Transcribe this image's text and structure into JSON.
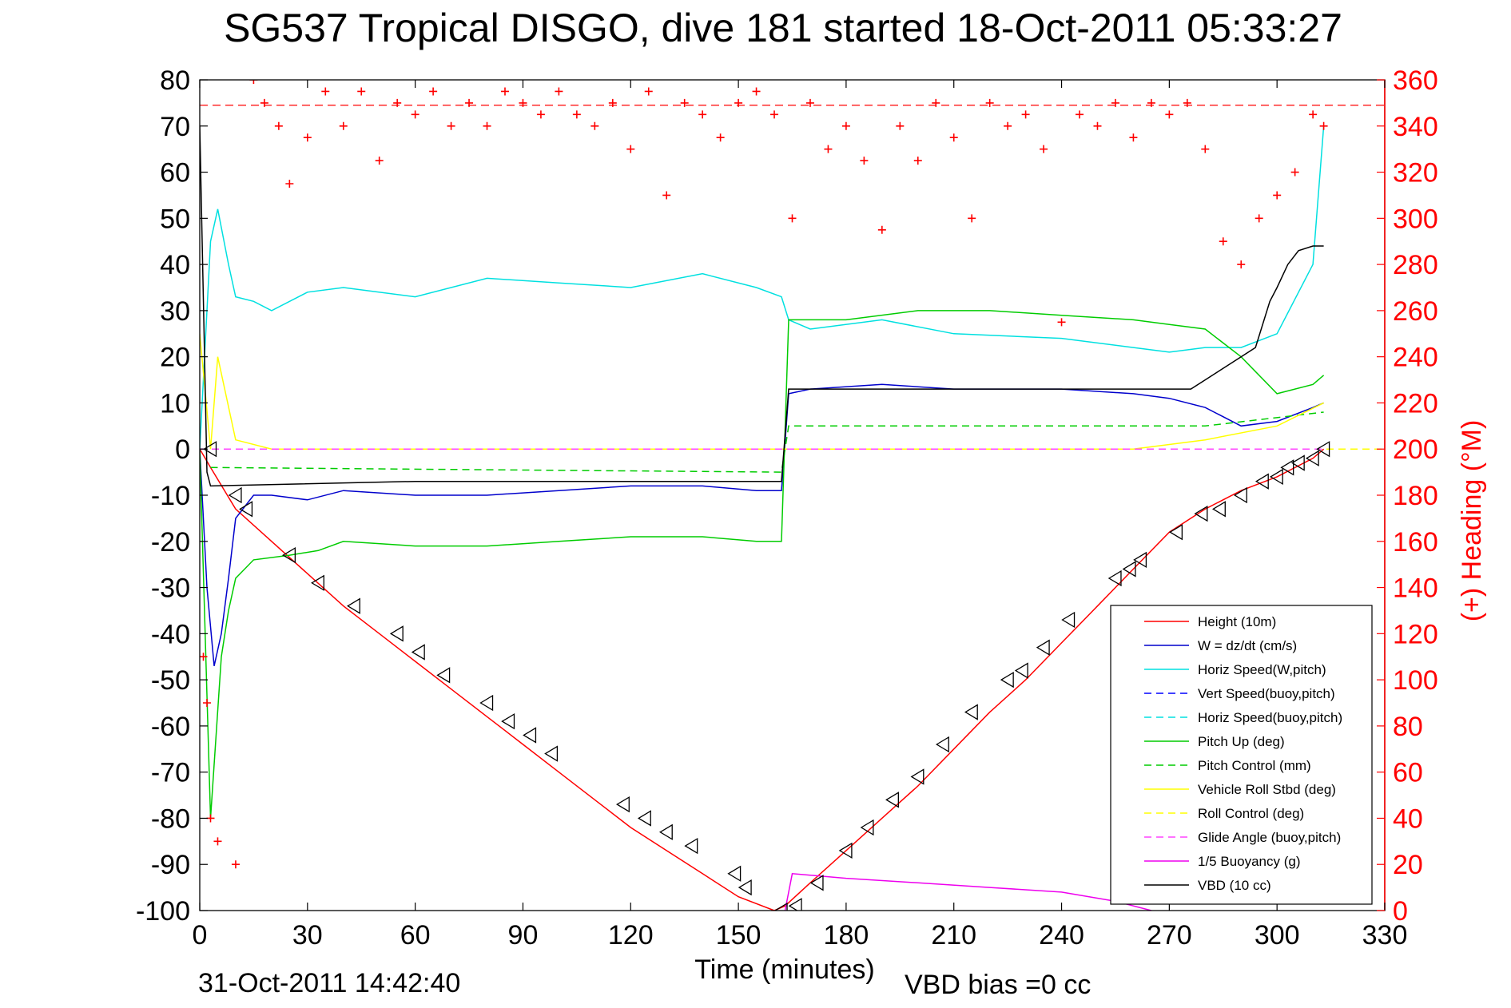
{
  "chart_data": {
    "type": "line",
    "title": "SG537 Tropical DISGO, dive 181 started 18-Oct-2011 05:33:27",
    "xlabel": "Time (minutes)",
    "ylabel_right": "(+) Heading (°M)",
    "xlim": [
      0,
      330
    ],
    "ylim": [
      -100,
      80
    ],
    "ylim_right": [
      0,
      360
    ],
    "x_ticks": [
      "0",
      "30",
      "60",
      "90",
      "120",
      "150",
      "180",
      "210",
      "240",
      "270",
      "300",
      "330"
    ],
    "y_ticks": [
      "80",
      "70",
      "60",
      "50",
      "40",
      "30",
      "20",
      "10",
      "0",
      "-10",
      "-20",
      "-30",
      "-40",
      "-50",
      "-60",
      "-70",
      "-80",
      "-90",
      "-100"
    ],
    "y_right_ticks": [
      "360",
      "340",
      "320",
      "300",
      "280",
      "260",
      "240",
      "220",
      "200",
      "180",
      "160",
      "140",
      "120",
      "100",
      "80",
      "60",
      "40",
      "20",
      "0"
    ],
    "bottom_left_text": "31-Oct-2011 14:42:40",
    "bottom_right_text": "VBD bias =0 cc",
    "legend_position": "bottom-right",
    "grid": false,
    "reference_line_heading": 349,
    "series": [
      {
        "name": "Height (10m)",
        "color": "#ff0000",
        "style": "solid",
        "x": [
          0,
          3,
          10,
          20,
          30,
          40,
          50,
          60,
          70,
          80,
          90,
          100,
          110,
          120,
          130,
          140,
          150,
          160,
          163,
          170,
          180,
          190,
          200,
          210,
          220,
          230,
          240,
          250,
          260,
          270,
          280,
          290,
          300,
          310,
          313
        ],
        "y": [
          0,
          -4,
          -13,
          -20,
          -27,
          -34,
          -40,
          -46,
          -52,
          -58,
          -64,
          -70,
          -76,
          -82,
          -87,
          -92,
          -97,
          -100,
          -99,
          -94,
          -87,
          -80,
          -73,
          -65,
          -57,
          -50,
          -42,
          -34,
          -26,
          -18,
          -13,
          -9,
          -6,
          -2,
          0
        ]
      },
      {
        "name": "W = dz/dt (cm/s)",
        "color": "#0000cc",
        "style": "solid",
        "x": [
          0,
          2,
          4,
          6,
          8,
          10,
          15,
          20,
          30,
          40,
          60,
          80,
          100,
          120,
          140,
          155,
          162,
          164,
          170,
          190,
          210,
          240,
          260,
          270,
          280,
          290,
          300,
          310,
          313
        ],
        "y": [
          0,
          -30,
          -47,
          -40,
          -28,
          -15,
          -10,
          -10,
          -11,
          -9,
          -10,
          -10,
          -9,
          -8,
          -8,
          -9,
          -9,
          12,
          13,
          14,
          13,
          13,
          12,
          11,
          9,
          5,
          6,
          9,
          10
        ]
      },
      {
        "name": "Horiz Speed(W,pitch)",
        "color": "#00e0e0",
        "style": "solid",
        "x": [
          0,
          3,
          5,
          8,
          10,
          15,
          20,
          30,
          40,
          60,
          80,
          100,
          120,
          140,
          155,
          162,
          164,
          170,
          190,
          210,
          240,
          260,
          270,
          280,
          290,
          300,
          310,
          313
        ],
        "y": [
          0,
          45,
          52,
          40,
          33,
          32,
          30,
          34,
          35,
          33,
          37,
          36,
          35,
          38,
          35,
          33,
          28,
          26,
          28,
          25,
          24,
          22,
          21,
          22,
          22,
          25,
          40,
          70
        ]
      },
      {
        "name": "Vert Speed(buoy,pitch)",
        "color": "#0000ff",
        "style": "dashed",
        "x": [
          0,
          330
        ],
        "y": [
          0,
          0
        ]
      },
      {
        "name": "Horiz Speed(buoy,pitch)",
        "color": "#00e0e0",
        "style": "dashed",
        "x": [
          0,
          330
        ],
        "y": [
          0,
          0
        ]
      },
      {
        "name": "Pitch Up (deg)",
        "color": "#00cc00",
        "style": "solid",
        "x": [
          0,
          3,
          6,
          8,
          10,
          15,
          25,
          33,
          40,
          60,
          80,
          100,
          120,
          140,
          155,
          162,
          164,
          180,
          200,
          220,
          240,
          260,
          270,
          280,
          290,
          300,
          310,
          313
        ],
        "y": [
          0,
          -80,
          -45,
          -35,
          -28,
          -24,
          -23,
          -22,
          -20,
          -21,
          -21,
          -20,
          -19,
          -19,
          -20,
          -20,
          28,
          28,
          30,
          30,
          29,
          28,
          27,
          26,
          20,
          12,
          14,
          16
        ]
      },
      {
        "name": "Pitch Control (mm)",
        "color": "#00cc00",
        "style": "dashed",
        "x": [
          3,
          162,
          164,
          200,
          240,
          280,
          313
        ],
        "y": [
          -4,
          -5,
          5,
          5,
          5,
          5,
          8
        ]
      },
      {
        "name": "Vehicle Roll Stbd (deg)",
        "color": "#ffff00",
        "style": "solid",
        "x": [
          0,
          3,
          5,
          10,
          20,
          40,
          60,
          80,
          100,
          120,
          140,
          160,
          180,
          200,
          220,
          240,
          260,
          280,
          300,
          313
        ],
        "y": [
          25,
          0,
          20,
          2,
          0,
          0,
          0,
          0,
          0,
          0,
          0,
          0,
          0,
          0,
          0,
          0,
          0,
          2,
          5,
          10
        ]
      },
      {
        "name": "Roll Control (deg)",
        "color": "#ffff00",
        "style": "dashed",
        "x": [
          0,
          330
        ],
        "y": [
          0,
          0
        ]
      },
      {
        "name": "Glide Angle (buoy,pitch)",
        "color": "#ff44ff",
        "style": "dashed",
        "x": [
          0,
          313
        ],
        "y": [
          0,
          0
        ]
      },
      {
        "name": "1/5 Buoyancy (g)",
        "color": "#ee00ee",
        "style": "solid",
        "x": [
          163,
          165,
          180,
          200,
          220,
          240,
          255,
          265
        ],
        "y": [
          -100,
          -92,
          -93,
          -94,
          -95,
          -96,
          -98,
          -100
        ]
      },
      {
        "name": "VBD (10 cc)",
        "color": "#000000",
        "style": "solid",
        "x": [
          0,
          2,
          3,
          60,
          162,
          164,
          200,
          240,
          276,
          280,
          290,
          294,
          298,
          300,
          303,
          306,
          310,
          313
        ],
        "y": [
          70,
          -5,
          -8,
          -7,
          -7,
          13,
          13,
          13,
          13,
          15,
          20,
          22,
          32,
          35,
          40,
          43,
          44,
          44
        ]
      },
      {
        "name": "Heading",
        "color": "#ff0000",
        "style": "markers",
        "axis": "right",
        "x": [
          1,
          2,
          3,
          5,
          10,
          15,
          18,
          22,
          25,
          30,
          35,
          40,
          45,
          50,
          55,
          60,
          65,
          70,
          75,
          80,
          85,
          90,
          95,
          100,
          105,
          110,
          115,
          120,
          125,
          130,
          135,
          140,
          145,
          150,
          155,
          160,
          165,
          170,
          175,
          180,
          185,
          190,
          195,
          200,
          205,
          210,
          215,
          220,
          225,
          230,
          235,
          240,
          245,
          250,
          255,
          260,
          265,
          270,
          275,
          280,
          285,
          290,
          295,
          300,
          305,
          310,
          313
        ],
        "y": [
          110,
          90,
          40,
          30,
          20,
          360,
          350,
          340,
          315,
          335,
          355,
          340,
          355,
          325,
          350,
          345,
          355,
          340,
          350,
          340,
          355,
          350,
          345,
          355,
          345,
          340,
          350,
          330,
          355,
          310,
          350,
          345,
          335,
          350,
          355,
          345,
          300,
          350,
          330,
          340,
          325,
          295,
          340,
          325,
          350,
          335,
          300,
          350,
          340,
          345,
          330,
          255,
          345,
          340,
          350,
          335,
          350,
          345,
          350,
          330,
          290,
          280,
          300,
          310,
          320,
          345,
          340
        ]
      },
      {
        "name": "Down markers",
        "color": "#000000",
        "style": "triangle-markers",
        "x": [
          3,
          10,
          13,
          25,
          33,
          43,
          55,
          61,
          68,
          80,
          86,
          92,
          98,
          118,
          124,
          130,
          137,
          149,
          152,
          162,
          166,
          172,
          180,
          186,
          193,
          200,
          207,
          215,
          225,
          229,
          235,
          242,
          255,
          259,
          262,
          272,
          279,
          284,
          290,
          296,
          300,
          303,
          306,
          310,
          313
        ],
        "y": [
          0,
          -10,
          -13,
          -23,
          -29,
          -34,
          -40,
          -44,
          -49,
          -55,
          -59,
          -62,
          -66,
          -77,
          -80,
          -83,
          -86,
          -92,
          -95,
          -100,
          -99,
          -94,
          -87,
          -82,
          -76,
          -71,
          -64,
          -57,
          -50,
          -48,
          -43,
          -37,
          -28,
          -26,
          -24,
          -18,
          -14,
          -13,
          -10,
          -7,
          -6,
          -4,
          -3,
          -2,
          0
        ]
      }
    ]
  }
}
